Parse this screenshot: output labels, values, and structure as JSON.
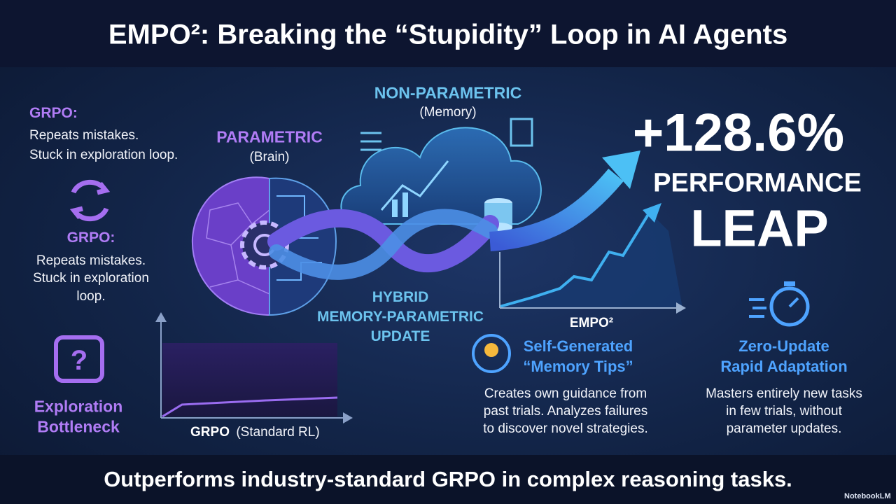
{
  "header": {
    "title": "EMPO²: Breaking the “Stupidity” Loop in AI Agents"
  },
  "left": {
    "items": [
      {
        "label": "GRPO:",
        "text": [
          "Repeats mistakes.",
          "Stuck in exploration loop."
        ]
      },
      {
        "label": "GRPO:",
        "text": [
          "Repeats mistakes.",
          "Stuck in exploration",
          "loop."
        ]
      }
    ],
    "bottleneck": [
      "Exploration",
      "Bottleneck"
    ]
  },
  "diagram": {
    "parametric": {
      "label": "PARAMETRIC",
      "sub": "(Brain)"
    },
    "non_parametric": {
      "label": "NON-PARAMETRIC",
      "sub": "(Memory)"
    },
    "hybrid": [
      "HYBRID",
      "MEMORY-PARAMETRIC",
      "UPDATE"
    ]
  },
  "grpo_chart": {
    "label": "GRPO",
    "sub": "(Standard RL)"
  },
  "empo_label": "EMPO²",
  "headline": {
    "value": "+128.6%",
    "lines": [
      "PERFORMANCE",
      "LEAP"
    ]
  },
  "features": [
    {
      "title": [
        "Self-Generated",
        "“Memory Tips”"
      ],
      "text": [
        "Creates own guidance from",
        "past trials. Analyzes failures",
        "to discover novel strategies."
      ]
    },
    {
      "title": [
        "Zero-Update",
        "Rapid Adaptation"
      ],
      "text": [
        "Masters entirely new tasks",
        "in few trials, without",
        "parameter updates."
      ]
    }
  ],
  "footer": {
    "text": "Outperforms industry-standard GRPO in complex reasoning tasks.",
    "brand": "NotebookLM"
  }
}
